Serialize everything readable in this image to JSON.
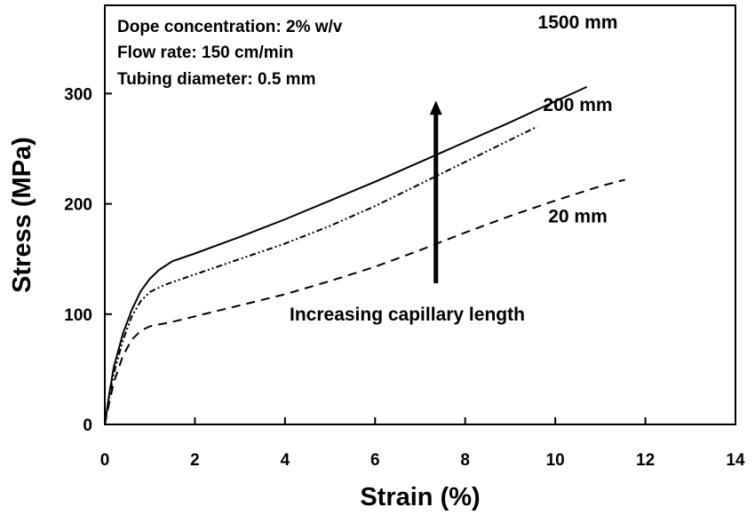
{
  "chart_data": {
    "type": "line",
    "title": "",
    "xlabel": "Strain (%)",
    "ylabel": "Stress (MPa)",
    "xlim": [
      0,
      14
    ],
    "ylim": [
      0,
      380
    ],
    "x_ticks": [
      0,
      2,
      4,
      6,
      8,
      10,
      12,
      14
    ],
    "y_ticks": [
      0,
      100,
      200,
      300
    ],
    "grid": false,
    "legend": "none",
    "info_lines": [
      "Dope concentration: 2% w/v",
      "Flow rate: 150 cm/min",
      "Tubing diameter: 0.5 mm"
    ],
    "annotation": {
      "text": "Increasing capillary length",
      "arrow_x": 7.35,
      "arrow_from_y": 128,
      "arrow_to_y": 292
    },
    "series": [
      {
        "name": "1500 mm",
        "style": "solid",
        "label_pos": [
          10.5,
          359
        ],
        "points": [
          [
            0,
            0
          ],
          [
            0.1,
            28
          ],
          [
            0.2,
            52
          ],
          [
            0.4,
            82
          ],
          [
            0.6,
            104
          ],
          [
            0.8,
            121
          ],
          [
            1.0,
            132
          ],
          [
            1.2,
            140
          ],
          [
            1.5,
            148
          ],
          [
            2,
            155
          ],
          [
            3,
            170
          ],
          [
            4,
            186
          ],
          [
            5,
            203
          ],
          [
            6,
            220
          ],
          [
            7,
            238
          ],
          [
            8,
            256
          ],
          [
            9,
            274
          ],
          [
            10,
            293
          ],
          [
            10.7,
            306
          ]
        ]
      },
      {
        "name": "200 mm",
        "style": "dash-dot-dot",
        "label_pos": [
          10.5,
          284
        ],
        "points": [
          [
            0,
            0
          ],
          [
            0.1,
            25
          ],
          [
            0.2,
            46
          ],
          [
            0.4,
            76
          ],
          [
            0.6,
            98
          ],
          [
            0.8,
            112
          ],
          [
            1.0,
            120
          ],
          [
            1.3,
            126
          ],
          [
            1.5,
            129
          ],
          [
            2,
            136
          ],
          [
            3,
            150
          ],
          [
            4,
            164
          ],
          [
            5,
            180
          ],
          [
            6,
            198
          ],
          [
            7,
            218
          ],
          [
            8,
            238
          ],
          [
            9,
            258
          ],
          [
            9.6,
            270
          ]
        ]
      },
      {
        "name": "20 mm",
        "style": "dashed",
        "label_pos": [
          10.5,
          183
        ],
        "points": [
          [
            0,
            0
          ],
          [
            0.1,
            20
          ],
          [
            0.2,
            38
          ],
          [
            0.4,
            62
          ],
          [
            0.6,
            77
          ],
          [
            0.8,
            85
          ],
          [
            1.0,
            89
          ],
          [
            1.5,
            93
          ],
          [
            2,
            98
          ],
          [
            3,
            108
          ],
          [
            4,
            118
          ],
          [
            5,
            130
          ],
          [
            6,
            143
          ],
          [
            7,
            158
          ],
          [
            8,
            174
          ],
          [
            9,
            189
          ],
          [
            10,
            203
          ],
          [
            11,
            216
          ],
          [
            11.55,
            222
          ]
        ]
      }
    ]
  }
}
